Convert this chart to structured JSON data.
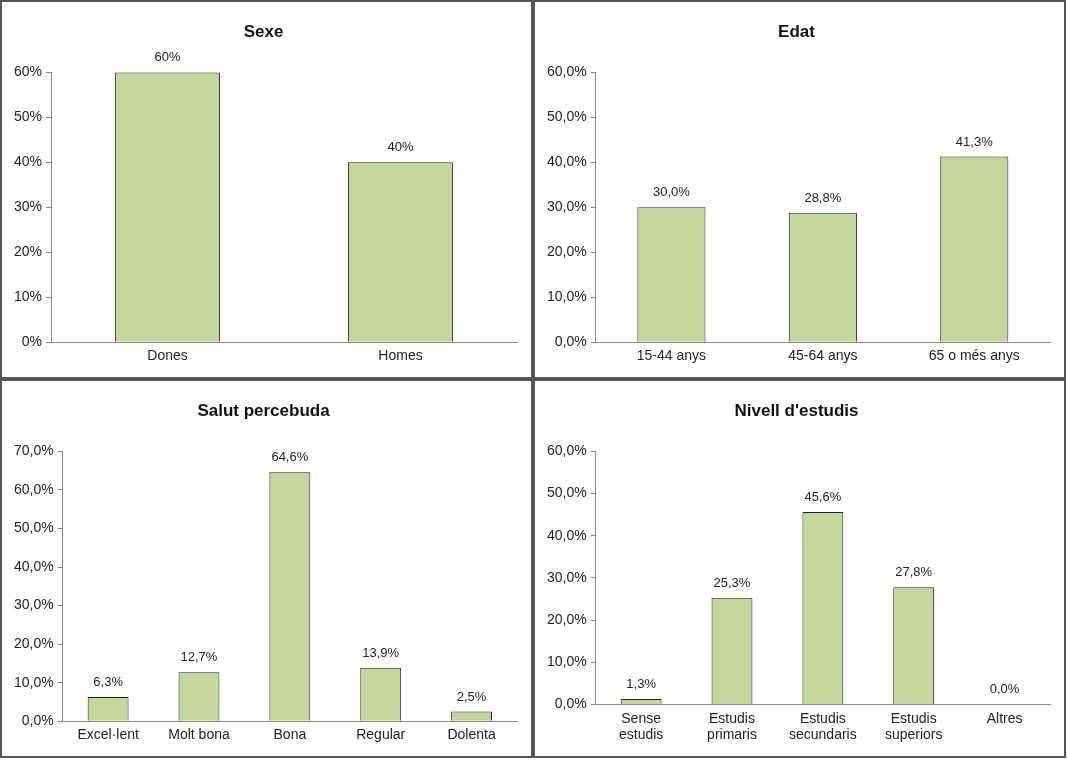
{
  "chart_data": [
    {
      "type": "bar",
      "title": "Sexe",
      "categories": [
        "Dones",
        "Homes"
      ],
      "values": [
        60,
        40
      ],
      "color": "#c3d69b",
      "value_labels": [
        "60%",
        "40%"
      ],
      "ylim": [
        0,
        60
      ],
      "yticks": [
        {
          "value": 0,
          "label": "0%"
        },
        {
          "value": 10,
          "label": "10%"
        },
        {
          "value": 20,
          "label": "20%"
        },
        {
          "value": 30,
          "label": "30%"
        },
        {
          "value": 40,
          "label": "40%"
        },
        {
          "value": 50,
          "label": "50%"
        },
        {
          "value": 60,
          "label": "60%"
        }
      ],
      "grid": false,
      "legend": false
    },
    {
      "type": "bar",
      "title": "Edat",
      "categories": [
        "15-44 anys",
        "45-64 anys",
        "65 o més anys"
      ],
      "values": [
        30.0,
        28.8,
        41.3
      ],
      "color": "#c3d69b",
      "value_labels": [
        "30,0%",
        "28,8%",
        "41,3%"
      ],
      "ylim": [
        0,
        60
      ],
      "yticks": [
        {
          "value": 0,
          "label": "0,0%"
        },
        {
          "value": 10,
          "label": "10,0%"
        },
        {
          "value": 20,
          "label": "20,0%"
        },
        {
          "value": 30,
          "label": "30,0%"
        },
        {
          "value": 40,
          "label": "40,0%"
        },
        {
          "value": 50,
          "label": "50,0%"
        },
        {
          "value": 60,
          "label": "60,0%"
        }
      ],
      "grid": false,
      "legend": false
    },
    {
      "type": "bar",
      "title": "Salut percebuda",
      "categories": [
        "Excel·lent",
        "Molt bona",
        "Bona",
        "Regular",
        "Dolenta"
      ],
      "values": [
        6.3,
        12.7,
        64.6,
        13.9,
        2.5
      ],
      "color": "#c3d69b",
      "value_labels": [
        "6,3%",
        "12,7%",
        "64,6%",
        "13,9%",
        "2,5%"
      ],
      "ylim": [
        0,
        70
      ],
      "yticks": [
        {
          "value": 0,
          "label": "0,0%"
        },
        {
          "value": 10,
          "label": "10,0%"
        },
        {
          "value": 20,
          "label": "20,0%"
        },
        {
          "value": 30,
          "label": "30,0%"
        },
        {
          "value": 40,
          "label": "40,0%"
        },
        {
          "value": 50,
          "label": "50,0%"
        },
        {
          "value": 60,
          "label": "60,0%"
        },
        {
          "value": 70,
          "label": "70,0%"
        }
      ],
      "grid": false,
      "legend": false
    },
    {
      "type": "bar",
      "title": "Nivell d'estudis",
      "categories": [
        "Sense\nestudis",
        "Estudis\nprimaris",
        "Estudis\nsecundaris",
        "Estudis\nsuperiors",
        "Altres"
      ],
      "values": [
        1.3,
        25.3,
        45.6,
        27.8,
        0.0
      ],
      "color": "#c3d69b",
      "value_labels": [
        "1,3%",
        "25,3%",
        "45,6%",
        "27,8%",
        "0,0%"
      ],
      "ylim": [
        0,
        60
      ],
      "yticks": [
        {
          "value": 0,
          "label": "0,0%"
        },
        {
          "value": 10,
          "label": "10,0%"
        },
        {
          "value": 20,
          "label": "20,0%"
        },
        {
          "value": 30,
          "label": "30,0%"
        },
        {
          "value": 40,
          "label": "40,0%"
        },
        {
          "value": 50,
          "label": "50,0%"
        },
        {
          "value": 60,
          "label": "60,0%"
        }
      ],
      "grid": false,
      "legend": false
    }
  ]
}
